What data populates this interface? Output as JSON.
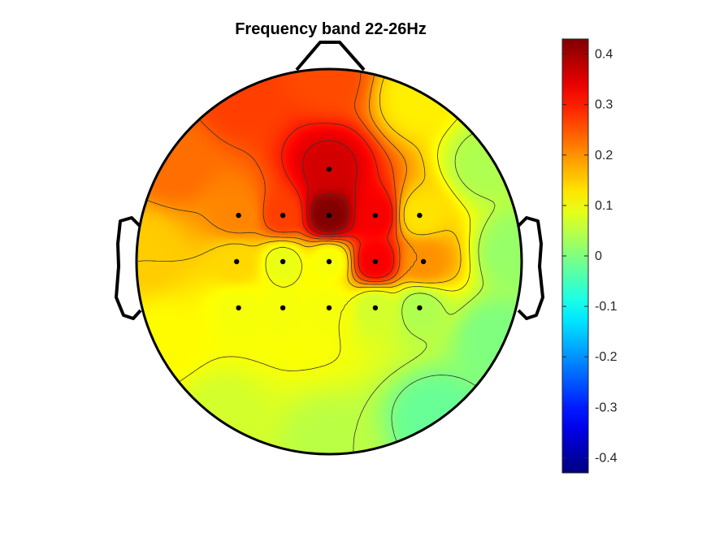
{
  "chart_data": {
    "type": "heatmap",
    "title": "Frequency band 22-26Hz",
    "xlabel": "",
    "ylabel": "",
    "colormap": "jet",
    "clim": [
      -0.43,
      0.43
    ],
    "colorbar": {
      "ticks": [
        0.4,
        0.3,
        0.2,
        0.1,
        0,
        -0.1,
        -0.2,
        -0.3,
        -0.4
      ],
      "tick_labels": [
        "0.4",
        "0.3",
        "0.2",
        "0.1",
        "0",
        "-0.1",
        "-0.2",
        "-0.3",
        "-0.4"
      ],
      "placement": "right"
    },
    "electrodes": [
      {
        "x": 0.0,
        "y": 0.48,
        "value": 0.36
      },
      {
        "x": -0.47,
        "y": 0.24,
        "value": 0.21
      },
      {
        "x": -0.24,
        "y": 0.24,
        "value": 0.27
      },
      {
        "x": 0.0,
        "y": 0.24,
        "value": 0.43
      },
      {
        "x": 0.24,
        "y": 0.24,
        "value": 0.33
      },
      {
        "x": 0.47,
        "y": 0.24,
        "value": 0.13
      },
      {
        "x": -0.48,
        "y": 0.0,
        "value": 0.14
      },
      {
        "x": -0.24,
        "y": 0.0,
        "value": 0.09
      },
      {
        "x": 0.0,
        "y": 0.0,
        "value": 0.1
      },
      {
        "x": 0.24,
        "y": 0.0,
        "value": 0.33
      },
      {
        "x": 0.49,
        "y": 0.0,
        "value": 0.2
      },
      {
        "x": -0.47,
        "y": -0.24,
        "value": 0.1
      },
      {
        "x": -0.24,
        "y": -0.24,
        "value": 0.1
      },
      {
        "x": 0.0,
        "y": -0.24,
        "value": 0.1
      },
      {
        "x": 0.24,
        "y": -0.24,
        "value": 0.07
      },
      {
        "x": 0.47,
        "y": -0.24,
        "value": 0.04
      }
    ],
    "boundary_values": [
      {
        "x": 0.0,
        "y": 0.96,
        "value": 0.26
      },
      {
        "x": -0.45,
        "y": 0.85,
        "value": 0.27
      },
      {
        "x": 0.45,
        "y": 0.85,
        "value": 0.12
      },
      {
        "x": -0.8,
        "y": 0.5,
        "value": 0.23
      },
      {
        "x": 0.8,
        "y": 0.5,
        "value": 0.04
      },
      {
        "x": -0.95,
        "y": 0.05,
        "value": 0.15
      },
      {
        "x": 0.95,
        "y": 0.05,
        "value": 0.02
      },
      {
        "x": -0.85,
        "y": -0.4,
        "value": 0.11
      },
      {
        "x": 0.85,
        "y": -0.4,
        "value": 0.0
      },
      {
        "x": -0.55,
        "y": -0.8,
        "value": 0.07
      },
      {
        "x": 0.55,
        "y": -0.8,
        "value": -0.02
      },
      {
        "x": 0.0,
        "y": -0.96,
        "value": 0.05
      }
    ],
    "contour_levels": [
      -0.05,
      0.0,
      0.05,
      0.1,
      0.15,
      0.2,
      0.25,
      0.3,
      0.35,
      0.4
    ],
    "head_outline_color": "#000000",
    "contour_color": "#333333"
  }
}
